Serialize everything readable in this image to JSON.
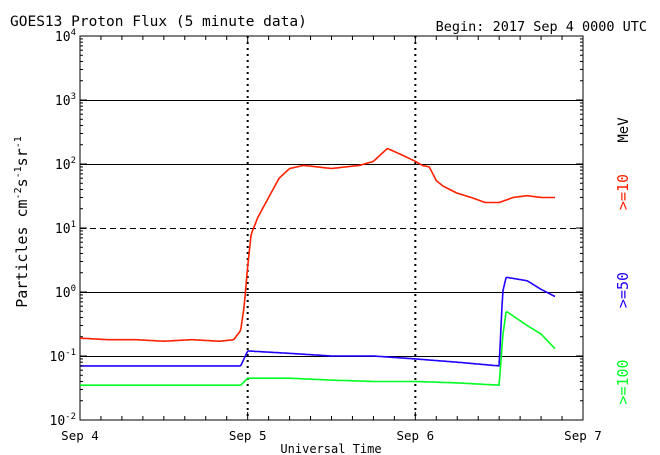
{
  "chart_data": {
    "type": "line",
    "title": "GOES13 Proton Flux (5 minute data)",
    "subtitle": "Begin: 2017 Sep 4 0000 UTC",
    "xlabel": "Universal Time",
    "ylabel": "Particles cm⁻²s⁻¹sr⁻¹",
    "ylabel_parts": {
      "base": "Particles cm",
      "e1": "-2",
      "s": "s",
      "e2": "-1",
      "sr": "sr",
      "e3": "-1"
    },
    "y_scale": "log",
    "ylim": [
      0.01,
      10000
    ],
    "y_tick_labels": [
      {
        "base": "10",
        "exp": "-2"
      },
      {
        "base": "10",
        "exp": "-1"
      },
      {
        "base": "10",
        "exp": "0"
      },
      {
        "base": "10",
        "exp": "1"
      },
      {
        "base": "10",
        "exp": "2"
      },
      {
        "base": "10",
        "exp": "3"
      },
      {
        "base": "10",
        "exp": "4"
      }
    ],
    "xlim": [
      "2017-09-04 00:00",
      "2017-09-07 00:00"
    ],
    "x_tick_labels": [
      "Sep 4",
      "Sep 5",
      "Sep 6",
      "Sep 7"
    ],
    "unit_label": "MeV",
    "thresholds": [
      {
        "value": 10,
        "style": "dashed"
      }
    ],
    "series": [
      {
        "name": ">=10",
        "color": "#ff2000",
        "points": [
          [
            "2017-09-04 00:00",
            0.19
          ],
          [
            "2017-09-04 04:00",
            0.18
          ],
          [
            "2017-09-04 08:00",
            0.18
          ],
          [
            "2017-09-04 12:00",
            0.17
          ],
          [
            "2017-09-04 16:00",
            0.18
          ],
          [
            "2017-09-04 20:00",
            0.17
          ],
          [
            "2017-09-04 22:00",
            0.18
          ],
          [
            "2017-09-04 23:00",
            0.25
          ],
          [
            "2017-09-04 23:30",
            0.6
          ],
          [
            "2017-09-05 00:00",
            2.5
          ],
          [
            "2017-09-05 00:30",
            8
          ],
          [
            "2017-09-05 01:30",
            15
          ],
          [
            "2017-09-05 03:00",
            30
          ],
          [
            "2017-09-05 04:30",
            60
          ],
          [
            "2017-09-05 06:00",
            85
          ],
          [
            "2017-09-05 08:00",
            95
          ],
          [
            "2017-09-05 10:00",
            90
          ],
          [
            "2017-09-05 12:00",
            85
          ],
          [
            "2017-09-05 14:00",
            90
          ],
          [
            "2017-09-05 16:00",
            95
          ],
          [
            "2017-09-05 18:00",
            110
          ],
          [
            "2017-09-05 20:00",
            175
          ],
          [
            "2017-09-05 22:00",
            140
          ],
          [
            "2017-09-06 00:00",
            110
          ],
          [
            "2017-09-06 01:00",
            95
          ],
          [
            "2017-09-06 02:00",
            90
          ],
          [
            "2017-09-06 03:00",
            55
          ],
          [
            "2017-09-06 04:00",
            45
          ],
          [
            "2017-09-06 06:00",
            35
          ],
          [
            "2017-09-06 08:00",
            30
          ],
          [
            "2017-09-06 10:00",
            25
          ],
          [
            "2017-09-06 12:00",
            25
          ],
          [
            "2017-09-06 14:00",
            30
          ],
          [
            "2017-09-06 16:00",
            32
          ],
          [
            "2017-09-06 18:00",
            30
          ],
          [
            "2017-09-06 20:00",
            30
          ]
        ]
      },
      {
        "name": ">=50",
        "color": "#2000ff",
        "points": [
          [
            "2017-09-04 00:00",
            0.07
          ],
          [
            "2017-09-04 06:00",
            0.07
          ],
          [
            "2017-09-04 12:00",
            0.07
          ],
          [
            "2017-09-04 18:00",
            0.07
          ],
          [
            "2017-09-04 23:00",
            0.07
          ],
          [
            "2017-09-05 00:00",
            0.12
          ],
          [
            "2017-09-05 06:00",
            0.11
          ],
          [
            "2017-09-05 12:00",
            0.1
          ],
          [
            "2017-09-05 18:00",
            0.1
          ],
          [
            "2017-09-06 00:00",
            0.09
          ],
          [
            "2017-09-06 06:00",
            0.08
          ],
          [
            "2017-09-06 12:00",
            0.07
          ],
          [
            "2017-09-06 12:30",
            1.0
          ],
          [
            "2017-09-06 13:00",
            1.7
          ],
          [
            "2017-09-06 16:00",
            1.5
          ],
          [
            "2017-09-06 18:00",
            1.1
          ],
          [
            "2017-09-06 20:00",
            0.85
          ]
        ]
      },
      {
        "name": ">=100",
        "color": "#00ff20",
        "points": [
          [
            "2017-09-04 00:00",
            0.035
          ],
          [
            "2017-09-04 06:00",
            0.035
          ],
          [
            "2017-09-04 12:00",
            0.035
          ],
          [
            "2017-09-04 18:00",
            0.035
          ],
          [
            "2017-09-04 23:00",
            0.035
          ],
          [
            "2017-09-05 00:00",
            0.045
          ],
          [
            "2017-09-05 06:00",
            0.045
          ],
          [
            "2017-09-05 12:00",
            0.042
          ],
          [
            "2017-09-05 18:00",
            0.04
          ],
          [
            "2017-09-06 00:00",
            0.04
          ],
          [
            "2017-09-06 06:00",
            0.038
          ],
          [
            "2017-09-06 12:00",
            0.035
          ],
          [
            "2017-09-06 12:30",
            0.2
          ],
          [
            "2017-09-06 13:00",
            0.5
          ],
          [
            "2017-09-06 16:00",
            0.3
          ],
          [
            "2017-09-06 18:00",
            0.22
          ],
          [
            "2017-09-06 20:00",
            0.13
          ]
        ]
      }
    ],
    "legend_placement": "right"
  }
}
